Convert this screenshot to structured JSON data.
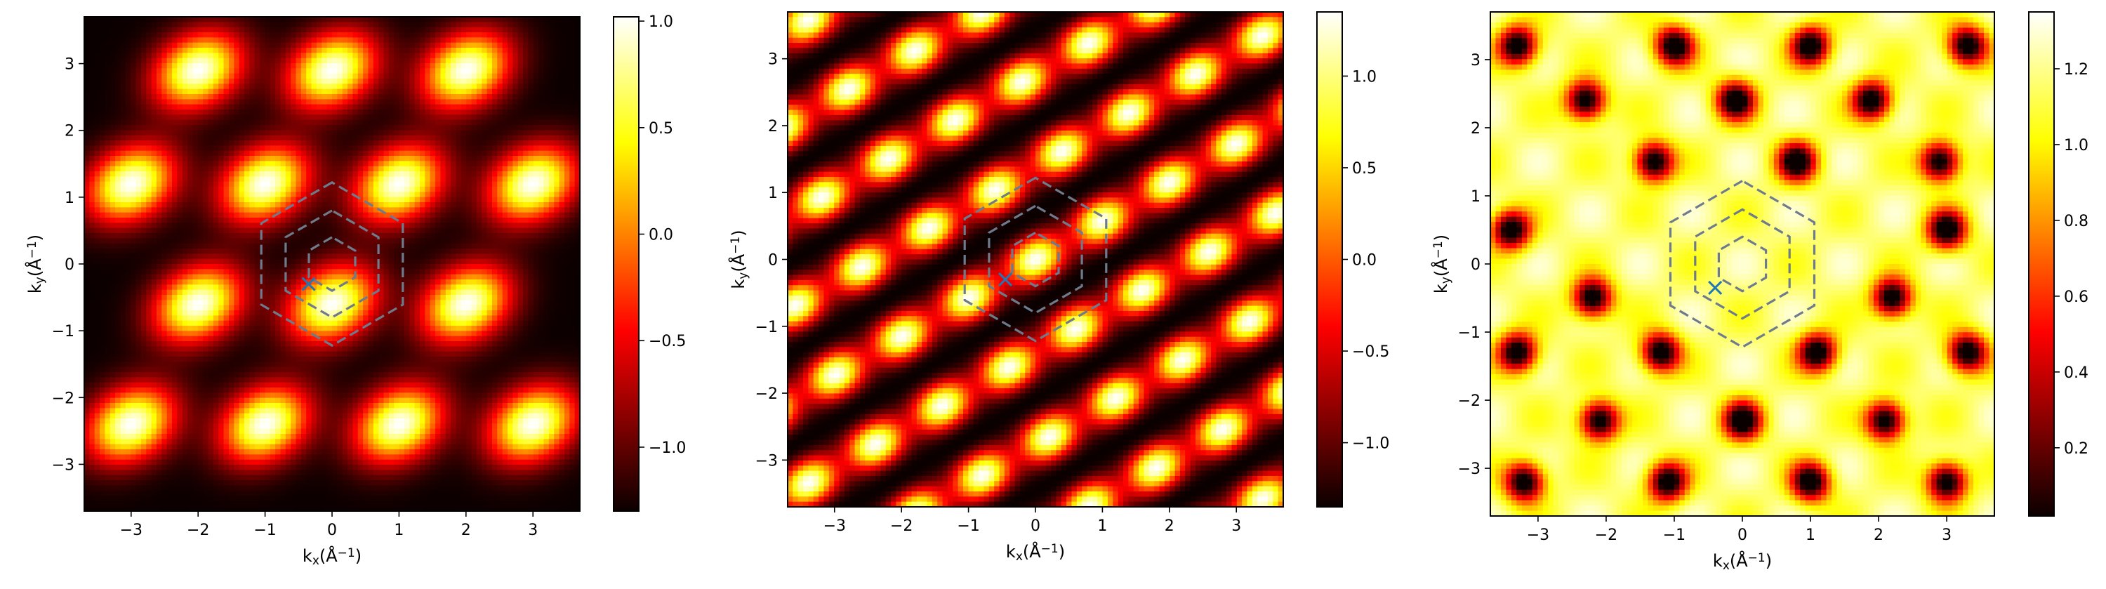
{
  "chart_data": [
    {
      "type": "heatmap",
      "colormap": "hot",
      "xlabel": "k_x(Å^-1)",
      "ylabel": "k_y(Å^-1)",
      "xlim": [
        -3.7,
        3.7
      ],
      "ylim": [
        -3.7,
        3.7
      ],
      "xticks": [
        -3,
        -2,
        -1,
        0,
        1,
        2,
        3
      ],
      "yticks": [
        -3,
        -2,
        -1,
        0,
        1,
        2,
        3
      ],
      "colorbar": {
        "min": -1.3,
        "max": 1.02,
        "ticks": [
          -1.0,
          -0.5,
          0.0,
          0.5,
          1.0
        ],
        "tick_labels": [
          "−1.0",
          "−0.5",
          "0.0",
          "0.5",
          "1.0"
        ]
      },
      "pattern": {
        "kind": "lobes",
        "peak_positions": [
          [
            0.0,
            2.9
          ],
          [
            2.0,
            2.9
          ],
          [
            -2.0,
            2.9
          ],
          [
            -1.0,
            1.2
          ],
          [
            1.0,
            1.2
          ],
          [
            3.0,
            1.2
          ],
          [
            -3.0,
            1.2
          ],
          [
            0.0,
            -0.6
          ],
          [
            2.0,
            -0.6
          ],
          [
            -2.0,
            -0.6
          ],
          [
            -1.0,
            -2.4
          ],
          [
            1.0,
            -2.4
          ],
          [
            3.0,
            -2.4
          ],
          [
            -3.0,
            -2.4
          ]
        ],
        "lobe_angle_deg": 30
      },
      "overlay": {
        "hexagon_radii": [
          0.4,
          0.8,
          1.22
        ],
        "line_style": "dashed",
        "line_color": "#6e7b8c",
        "marker": "x",
        "marker_position": [
          -0.35,
          -0.3
        ],
        "marker_color": "#1f77b4"
      }
    },
    {
      "type": "heatmap",
      "colormap": "hot",
      "xlabel": "k_x(Å^-1)",
      "ylabel": "k_y(Å^-1)",
      "xlim": [
        -3.7,
        3.7
      ],
      "ylim": [
        -3.7,
        3.7
      ],
      "xticks": [
        -3,
        -2,
        -1,
        0,
        1,
        2,
        3
      ],
      "yticks": [
        -3,
        -2,
        -1,
        0,
        1,
        2,
        3
      ],
      "colorbar": {
        "min": -1.35,
        "max": 1.35,
        "ticks": [
          -1.0,
          -0.5,
          0.0,
          0.5,
          1.0
        ],
        "tick_labels": [
          "−1.0",
          "−0.5",
          "0.0",
          "0.5",
          "1.0"
        ]
      },
      "pattern": {
        "kind": "diagonal-stripes",
        "stripe_angle_deg": -30,
        "period": 1.2
      },
      "overlay": {
        "hexagon_radii": [
          0.4,
          0.8,
          1.22
        ],
        "line_style": "dashed",
        "line_color": "#6e7b8c",
        "marker": "x",
        "marker_position": [
          -0.45,
          -0.3
        ],
        "marker_color": "#1f77b4"
      }
    },
    {
      "type": "heatmap",
      "colormap": "hot",
      "xlabel": "k_x(Å^-1)",
      "ylabel": "k_y(Å^-1)",
      "xlim": [
        -3.7,
        3.7
      ],
      "ylim": [
        -3.7,
        3.7
      ],
      "xticks": [
        -3,
        -2,
        -1,
        0,
        1,
        2,
        3
      ],
      "yticks": [
        -3,
        -2,
        -1,
        0,
        1,
        2,
        3
      ],
      "colorbar": {
        "min": 0.02,
        "max": 1.35,
        "ticks": [
          0.2,
          0.4,
          0.6,
          0.8,
          1.0,
          1.2
        ],
        "tick_labels": [
          "0.2",
          "0.4",
          "0.6",
          "0.8",
          "1.0",
          "1.2"
        ]
      },
      "pattern": {
        "kind": "dark-spots",
        "spot_positions": [
          [
            -3.3,
            3.2
          ],
          [
            -1.0,
            3.2
          ],
          [
            1.0,
            3.2
          ],
          [
            3.3,
            3.2
          ],
          [
            -2.3,
            2.4
          ],
          [
            -0.1,
            2.4
          ],
          [
            1.9,
            2.4
          ],
          [
            -1.3,
            1.5
          ],
          [
            0.8,
            1.5
          ],
          [
            2.9,
            1.5
          ],
          [
            -3.4,
            0.5
          ],
          [
            3.0,
            0.5
          ],
          [
            -2.2,
            -0.5
          ],
          [
            2.2,
            -0.5
          ],
          [
            -3.3,
            -1.3
          ],
          [
            -1.2,
            -1.3
          ],
          [
            1.1,
            -1.3
          ],
          [
            3.3,
            -1.3
          ],
          [
            -2.1,
            -2.3
          ],
          [
            0.0,
            -2.3
          ],
          [
            2.1,
            -2.3
          ],
          [
            -3.2,
            -3.2
          ],
          [
            -1.1,
            -3.2
          ],
          [
            1.0,
            -3.2
          ],
          [
            3.0,
            -3.2
          ]
        ]
      },
      "overlay": {
        "hexagon_radii": [
          0.4,
          0.8,
          1.22
        ],
        "line_style": "dashed",
        "line_color": "#6e7b8c",
        "marker": "x",
        "marker_position": [
          -0.4,
          -0.35
        ],
        "marker_color": "#1f77b4"
      }
    }
  ]
}
